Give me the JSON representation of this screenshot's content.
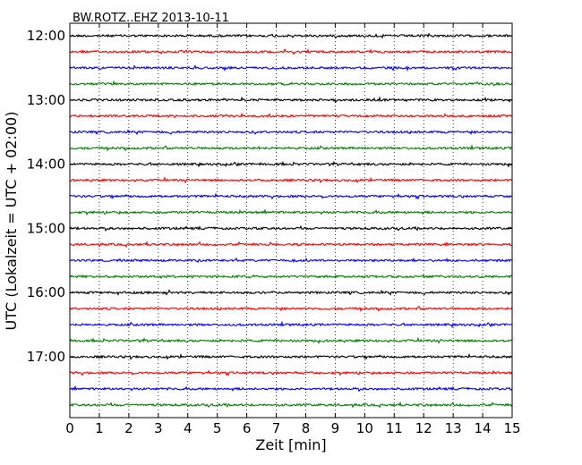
{
  "chart_data": {
    "type": "line",
    "title": "BW.ROTZ..EHZ 2013-10-11",
    "xlabel": "Zeit  [min]",
    "ylabel": "UTC (Lokalzeit = UTC + 02:00)",
    "xlim": [
      0,
      15
    ],
    "x_ticks": [
      0,
      1,
      2,
      3,
      4,
      5,
      6,
      7,
      8,
      9,
      10,
      11,
      12,
      13,
      14,
      15
    ],
    "x_tick_labels": [
      "0",
      "1",
      "2",
      "3",
      "4",
      "5",
      "6",
      "7",
      "8",
      "9",
      "10",
      "11",
      "12",
      "13",
      "14",
      "15"
    ],
    "y_tick_labels": [
      "12:00",
      "13:00",
      "14:00",
      "15:00",
      "16:00",
      "17:00"
    ],
    "trace_colors": [
      "#000000",
      "#ff0000",
      "#0000ff",
      "#008000"
    ],
    "trace_start_times": [
      "12:00",
      "12:15",
      "12:30",
      "12:45",
      "13:00",
      "13:15",
      "13:30",
      "13:45",
      "14:00",
      "14:15",
      "14:30",
      "14:45",
      "15:00",
      "15:15",
      "15:30",
      "15:45",
      "16:00",
      "16:15",
      "16:30",
      "16:45",
      "17:00",
      "17:15",
      "17:30",
      "17:45"
    ],
    "grid": "vertical dotted",
    "legend": "none"
  }
}
